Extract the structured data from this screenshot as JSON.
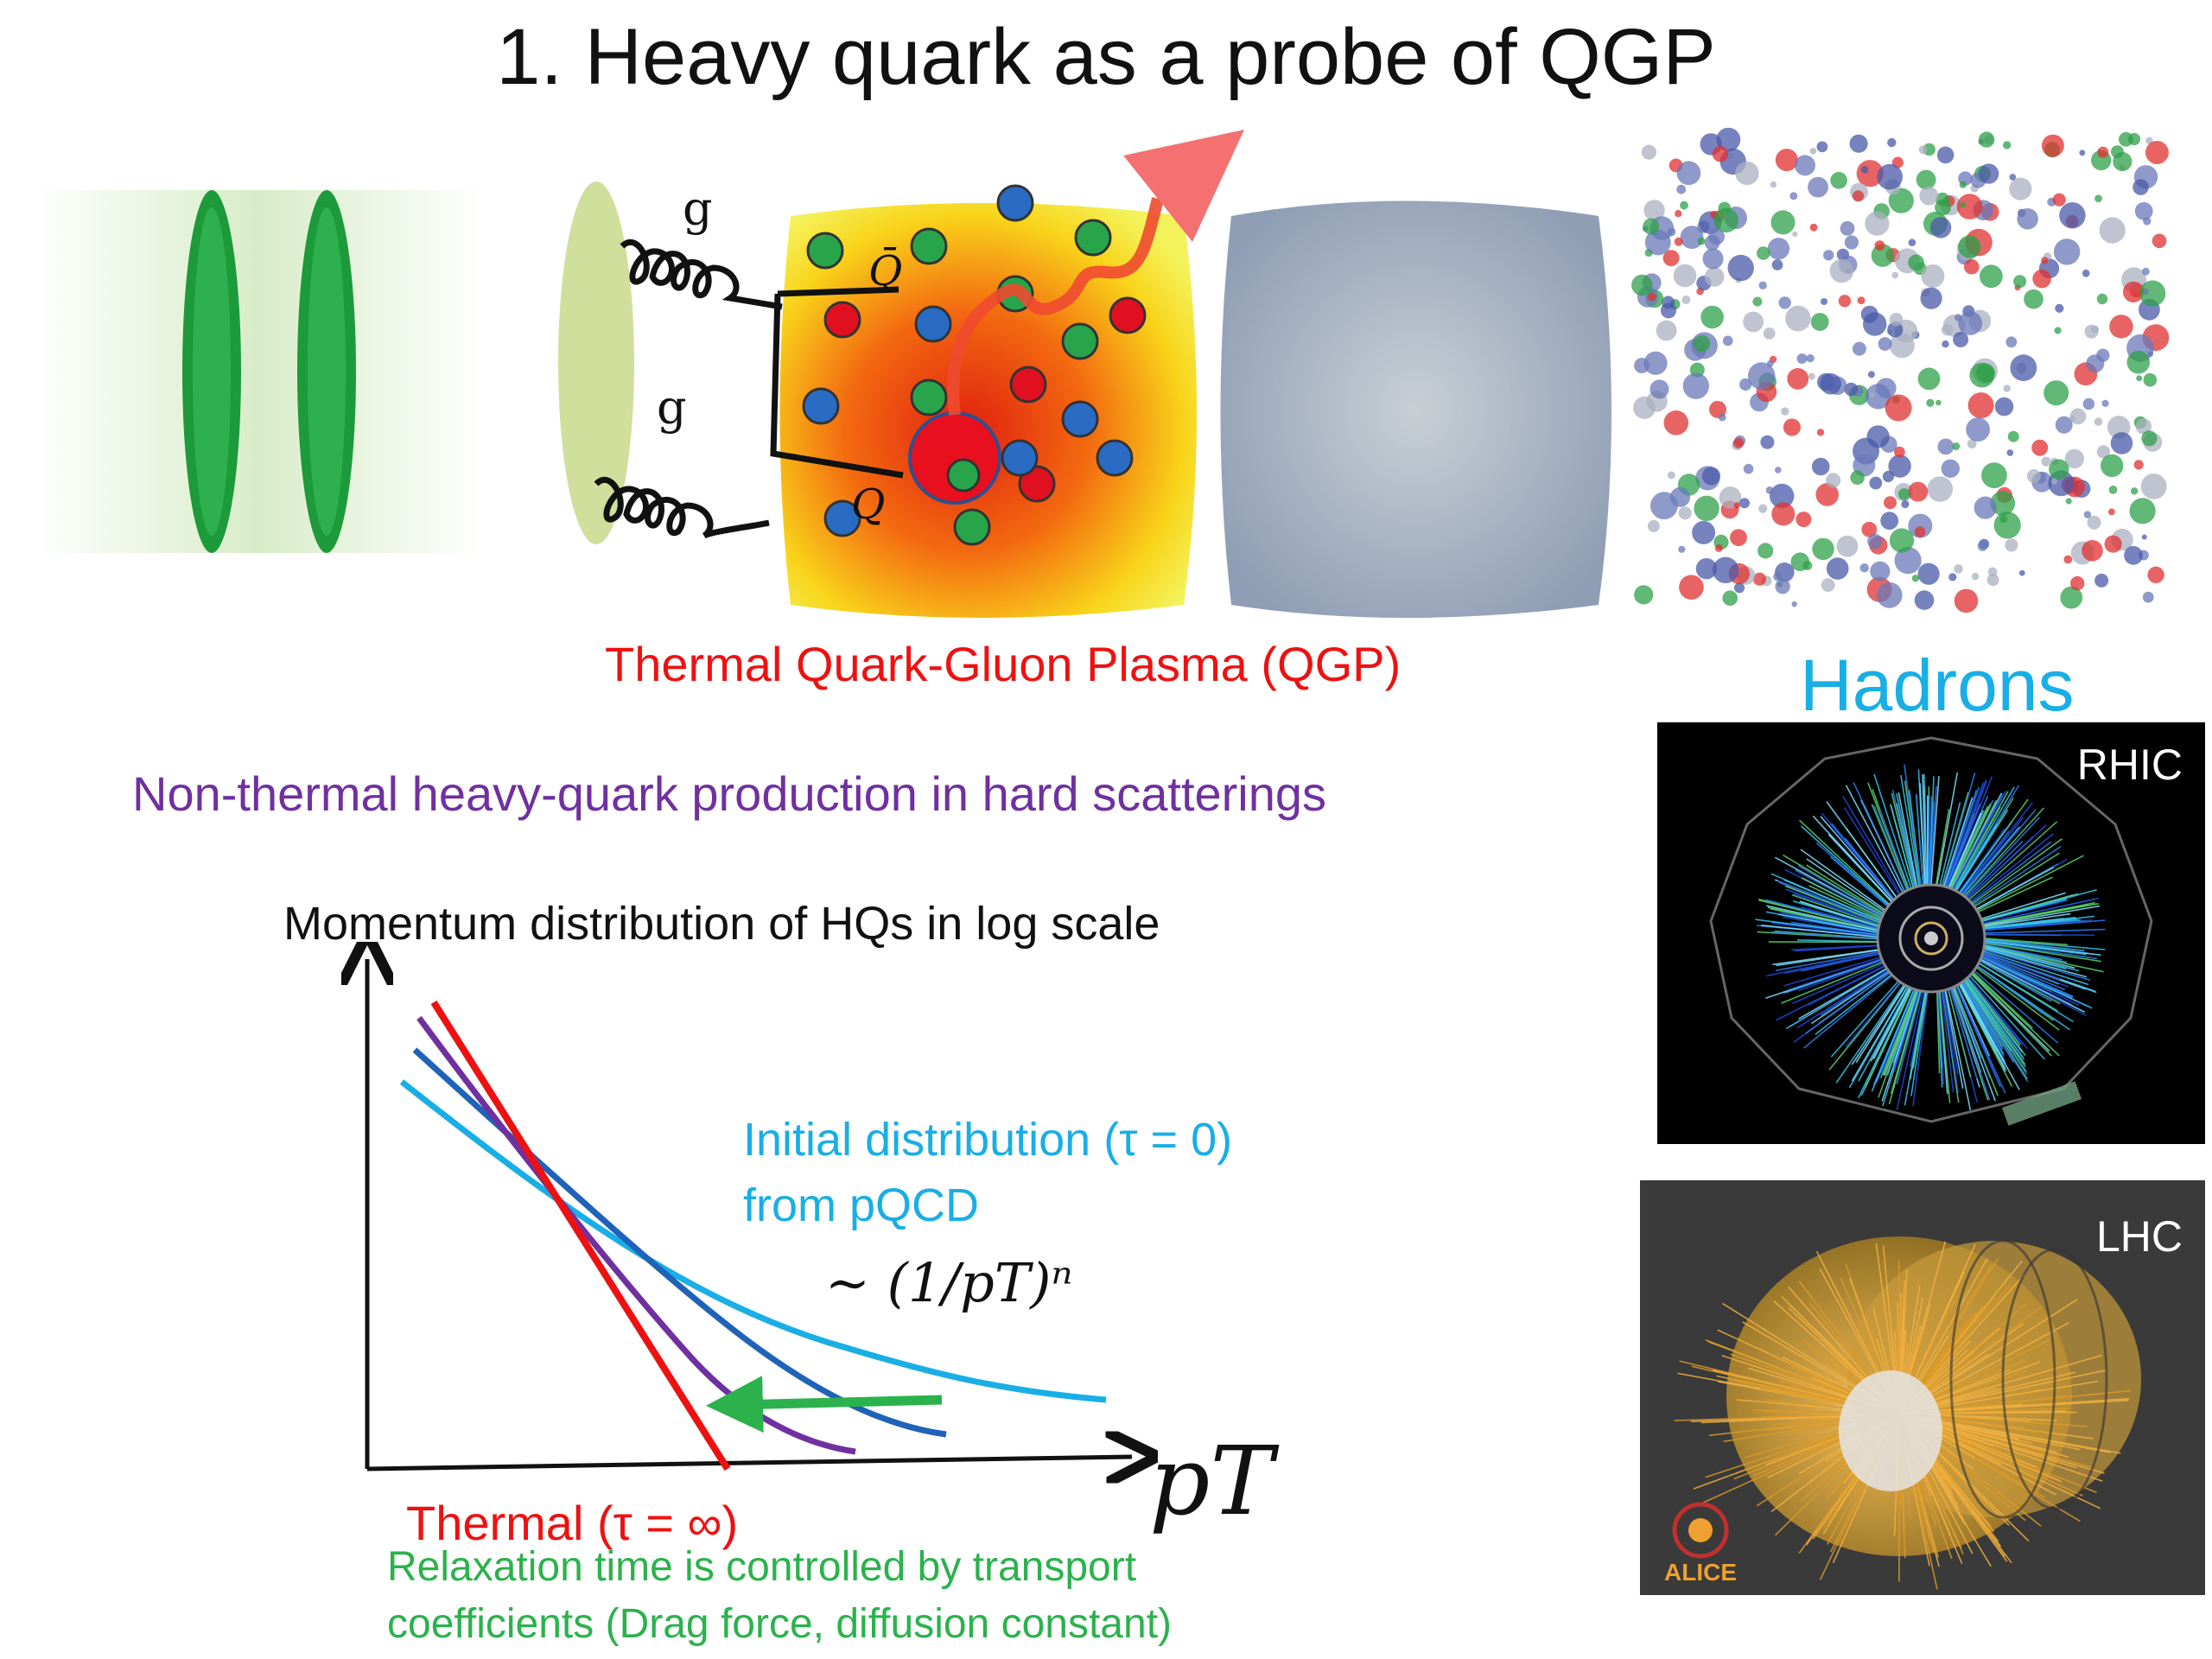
{
  "slide": {
    "title": "1. Heavy quark as a probe of QGP"
  },
  "illustration": {
    "gluon_label_top": "g",
    "gluon_label_bottom": "g",
    "antiquark_label": "Q̄",
    "quark_label": "Q",
    "qgp_caption": "Thermal Quark-Gluon Plasma (QGP)",
    "hadrons_label": "Hadrons"
  },
  "captions": {
    "nonthermal": "Non-thermal heavy-quark production in hard scatterings",
    "momentum_title": "Momentum distribution of HQs in log scale"
  },
  "chart_data": {
    "type": "line",
    "title": "Momentum distribution of HQs in log scale",
    "xlabel": "pT",
    "ylabel": "",
    "series": [
      {
        "name": "Initial distribution (τ = 0) from pQCD",
        "color": "#19aee6"
      },
      {
        "name": "Thermal (τ = ∞)",
        "color": "#ee1111"
      }
    ],
    "annotations": {
      "initial_line1": "Initial distribution (τ = 0)",
      "initial_line2": "from pQCD",
      "power_law": "∼ (1/pT)ⁿ",
      "thermal": "Thermal  (τ = ∞)",
      "relaxation_line1": "Relaxation time is controlled by transport",
      "relaxation_line2": "coefficients (Drag force, diffusion constant)"
    },
    "colors": {
      "initial": "#19aee6",
      "intermediate_1": "#1f63b8",
      "intermediate_2": "#7030a0",
      "thermal": "#ee1111",
      "arrow": "#2bb24c"
    }
  },
  "events": {
    "rhic_label": "RHIC",
    "lhc_label": "LHC",
    "alice_logo": "ALICE"
  }
}
